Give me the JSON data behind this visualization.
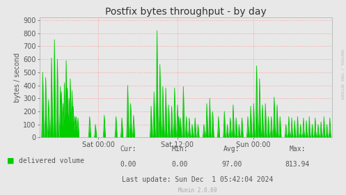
{
  "title": "Postfix bytes throughput - by day",
  "ylabel": "bytes / second",
  "bg_color": "#e8e8e8",
  "plot_bg_color": "#e8e8e8",
  "grid_color": "#ff9999",
  "line_color": "#00cc00",
  "fill_color": "#00cc00",
  "yticks": [
    0,
    100,
    200,
    300,
    400,
    500,
    600,
    700,
    800,
    900
  ],
  "ylim": [
    0,
    920
  ],
  "xtick_labels": [
    "Sat 00:00",
    "Sat 12:00",
    "Sun 00:00"
  ],
  "xtick_pos": [
    0.2,
    0.47,
    0.73
  ],
  "legend_label": "delivered volume",
  "legend_color": "#00cc00",
  "cur_label": "Cur:",
  "cur_val": "0.00",
  "min_label": "Min:",
  "min_val": "0.00",
  "avg_label": "Avg:",
  "avg_val": "97.00",
  "max_label": "Max:",
  "max_val": "813.94",
  "last_update": "Last update: Sun Dec  1 05:42:04 2024",
  "munin_version": "Munin 2.0.69",
  "rrdtool_label": "RRDTOOL / TOBI OETIKER",
  "title_fontsize": 10,
  "label_fontsize": 7,
  "tick_fontsize": 7,
  "stats_fontsize": 7,
  "num_points": 500
}
